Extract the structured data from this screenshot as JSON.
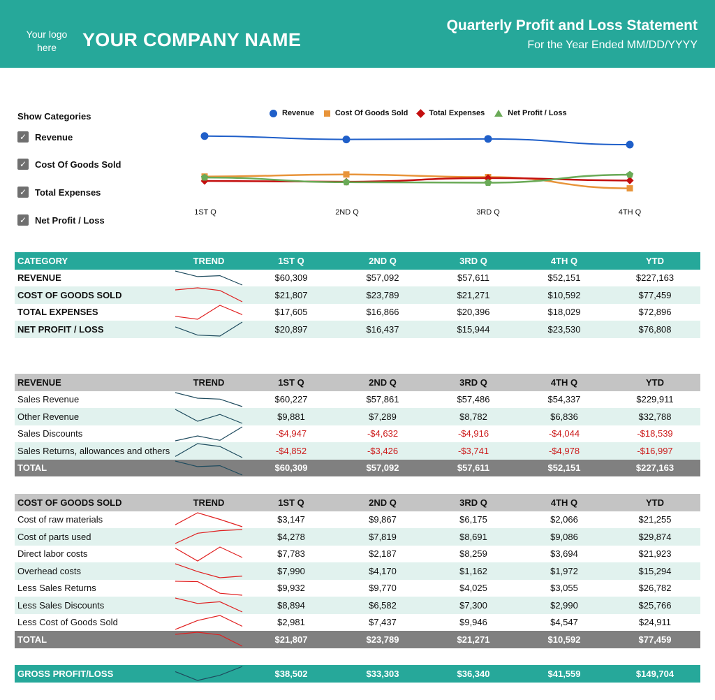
{
  "header": {
    "logo": "Your logo here",
    "company": "YOUR COMPANY NAME",
    "title": "Quarterly Profit and Loss Statement",
    "subtitle": "For the Year Ended MM/DD/YYYY"
  },
  "categories_panel": {
    "title": "Show Categories",
    "items": [
      {
        "label": "Revenue",
        "checked": true
      },
      {
        "label": "Cost Of Goods Sold",
        "checked": true
      },
      {
        "label": "Total Expenses",
        "checked": true
      },
      {
        "label": "Net Profit / Loss",
        "checked": true
      }
    ]
  },
  "colors": {
    "teal": "#26a89a",
    "revenue": "#1f5fc9",
    "cogs": "#e8943a",
    "expenses": "#c40f0f",
    "net": "#6aaa57",
    "negative": "#cc1b1b",
    "trend_up": "#1e4b5e",
    "trend_red": "#e02020"
  },
  "chart_data": {
    "type": "line",
    "categories": [
      "1ST Q",
      "2ND Q",
      "3RD Q",
      "4TH Q"
    ],
    "series": [
      {
        "name": "Revenue",
        "values": [
          60309,
          57092,
          57611,
          52151
        ],
        "marker": "circle"
      },
      {
        "name": "Cost Of Goods Sold",
        "values": [
          21807,
          23789,
          21271,
          10592
        ],
        "marker": "square"
      },
      {
        "name": "Total Expenses",
        "values": [
          17605,
          16866,
          20396,
          18029
        ],
        "marker": "diamond"
      },
      {
        "name": "Net Profit / Loss",
        "values": [
          20897,
          16437,
          15944,
          23530
        ],
        "marker": "pentagon"
      }
    ],
    "legend": "top"
  },
  "summary": {
    "headers": [
      "CATEGORY",
      "TREND",
      "1ST Q",
      "2ND Q",
      "3RD Q",
      "4TH Q",
      "YTD"
    ],
    "rows": [
      {
        "label": "REVENUE",
        "values": [
          "$60,309",
          "$57,092",
          "$57,611",
          "$52,151",
          "$227,163"
        ],
        "trend": [
          60309,
          57092,
          57611,
          52151
        ],
        "trend_color": "#1e4b5e"
      },
      {
        "label": "COST OF GOODS SOLD",
        "values": [
          "$21,807",
          "$23,789",
          "$21,271",
          "$10,592",
          "$77,459"
        ],
        "trend": [
          21807,
          23789,
          21271,
          10592
        ],
        "trend_color": "#e02020"
      },
      {
        "label": "TOTAL EXPENSES",
        "values": [
          "$17,605",
          "$16,866",
          "$20,396",
          "$18,029",
          "$72,896"
        ],
        "trend": [
          17605,
          16866,
          20396,
          18029
        ],
        "trend_color": "#e02020"
      },
      {
        "label": "NET PROFIT / LOSS",
        "values": [
          "$20,897",
          "$16,437",
          "$15,944",
          "$23,530",
          "$76,808"
        ],
        "trend": [
          20897,
          16437,
          15944,
          23530
        ],
        "trend_color": "#1e4b5e"
      }
    ]
  },
  "revenue": {
    "headers": [
      "REVENUE",
      "TREND",
      "1ST Q",
      "2ND Q",
      "3RD Q",
      "4TH Q",
      "YTD"
    ],
    "rows": [
      {
        "label": "Sales Revenue",
        "values": [
          "$60,227",
          "$57,861",
          "$57,486",
          "$54,337",
          "$229,911"
        ],
        "trend": [
          60227,
          57861,
          57486,
          54337
        ],
        "negative": false
      },
      {
        "label": "Other Revenue",
        "values": [
          "$9,881",
          "$7,289",
          "$8,782",
          "$6,836",
          "$32,788"
        ],
        "trend": [
          9881,
          7289,
          8782,
          6836
        ],
        "negative": false
      },
      {
        "label": "Sales Discounts",
        "values": [
          "-$4,947",
          "-$4,632",
          "-$4,916",
          "-$4,044",
          "-$18,539"
        ],
        "trend": [
          -4947,
          -4632,
          -4916,
          -4044
        ],
        "negative": true
      },
      {
        "label": "Sales Returns, allowances and others",
        "values": [
          "-$4,852",
          "-$3,426",
          "-$3,741",
          "-$4,978",
          "-$16,997"
        ],
        "trend": [
          -4852,
          -3426,
          -3741,
          -4978
        ],
        "negative": true
      }
    ],
    "total": {
      "label": "TOTAL",
      "values": [
        "$60,309",
        "$57,092",
        "$57,611",
        "$52,151",
        "$227,163"
      ],
      "trend": [
        60309,
        57092,
        57611,
        52151
      ]
    }
  },
  "cogs": {
    "headers": [
      "COST OF GOODS SOLD",
      "TREND",
      "1ST Q",
      "2ND Q",
      "3RD Q",
      "4TH Q",
      "YTD"
    ],
    "rows": [
      {
        "label": "Cost of raw materials",
        "values": [
          "$3,147",
          "$9,867",
          "$6,175",
          "$2,066",
          "$21,255"
        ],
        "trend": [
          3147,
          9867,
          6175,
          2066
        ]
      },
      {
        "label": "Cost of parts used",
        "values": [
          "$4,278",
          "$7,819",
          "$8,691",
          "$9,086",
          "$29,874"
        ],
        "trend": [
          4278,
          7819,
          8691,
          9086
        ]
      },
      {
        "label": "Direct labor costs",
        "values": [
          "$7,783",
          "$2,187",
          "$8,259",
          "$3,694",
          "$21,923"
        ],
        "trend": [
          7783,
          2187,
          8259,
          3694
        ]
      },
      {
        "label": "Overhead costs",
        "values": [
          "$7,990",
          "$4,170",
          "$1,162",
          "$1,972",
          "$15,294"
        ],
        "trend": [
          7990,
          4170,
          1162,
          1972
        ]
      },
      {
        "label": "Less Sales Returns",
        "values": [
          "$9,932",
          "$9,770",
          "$4,025",
          "$3,055",
          "$26,782"
        ],
        "trend": [
          9932,
          9770,
          4025,
          3055
        ]
      },
      {
        "label": "Less Sales Discounts",
        "values": [
          "$8,894",
          "$6,582",
          "$7,300",
          "$2,990",
          "$25,766"
        ],
        "trend": [
          8894,
          6582,
          7300,
          2990
        ]
      },
      {
        "label": "Less Cost of Goods Sold",
        "values": [
          "$2,981",
          "$7,437",
          "$9,946",
          "$4,547",
          "$24,911"
        ],
        "trend": [
          2981,
          7437,
          9946,
          4547
        ]
      }
    ],
    "total": {
      "label": "TOTAL",
      "values": [
        "$21,807",
        "$23,789",
        "$21,271",
        "$10,592",
        "$77,459"
      ],
      "trend": [
        21807,
        23789,
        21271,
        10592
      ]
    }
  },
  "gross": {
    "label": "GROSS PROFIT/LOSS",
    "values": [
      "$38,502",
      "$33,303",
      "$36,340",
      "$41,559",
      "$149,704"
    ],
    "trend": [
      38502,
      33303,
      36340,
      41559
    ]
  }
}
